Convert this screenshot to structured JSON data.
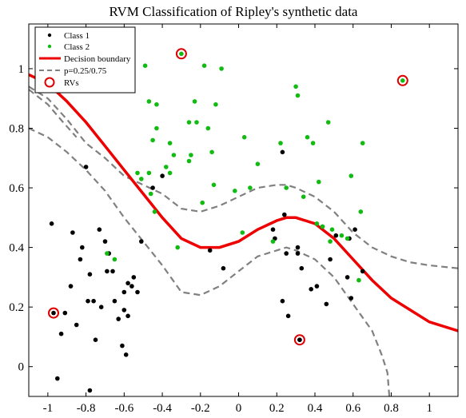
{
  "chart_data": {
    "type": "scatter",
    "title": "RVM Classification of Ripley's synthetic data",
    "xlabel": "",
    "ylabel": "",
    "xlim": [
      -1.1,
      1.15
    ],
    "ylim": [
      -0.1,
      1.15
    ],
    "xticks": [
      -1,
      -0.8,
      -0.6,
      -0.4,
      -0.2,
      0,
      0.2,
      0.4,
      0.6,
      0.8,
      1
    ],
    "xtick_labels": [
      "-1",
      "-0.8",
      "-0.6",
      "-0.4",
      "-0.2",
      "0",
      "0.2",
      "0.4",
      "0.6",
      "0.8",
      "1"
    ],
    "yticks": [
      0,
      0.2,
      0.4,
      0.6,
      0.8,
      1
    ],
    "ytick_labels": [
      "0",
      "0.2",
      "0.4",
      "0.6",
      "0.8",
      "1"
    ],
    "grid": false,
    "legend_position": "top-left",
    "colors": {
      "class1": "#000000",
      "class2": "#11bb11",
      "boundary": "#ee0000",
      "contour": "#808080",
      "rv_ring": "#dd0000"
    },
    "legend": [
      {
        "label": "Class 1",
        "marker": "black-dot"
      },
      {
        "label": "Class 2",
        "marker": "green-dot"
      },
      {
        "label": "Decision boundary",
        "marker": "red-line"
      },
      {
        "label": "p=0.25/0.75",
        "marker": "gray-dashed-line"
      },
      {
        "label": "RVs",
        "marker": "red-circle"
      }
    ],
    "series": [
      {
        "name": "Class 1",
        "points": [
          [
            -0.98,
            0.48
          ],
          [
            -0.95,
            -0.04
          ],
          [
            -0.93,
            0.11
          ],
          [
            -0.91,
            0.18
          ],
          [
            -0.88,
            0.27
          ],
          [
            -0.87,
            0.45
          ],
          [
            -0.85,
            0.14
          ],
          [
            -0.83,
            0.36
          ],
          [
            -0.82,
            0.4
          ],
          [
            -0.8,
            0.67
          ],
          [
            -0.79,
            0.22
          ],
          [
            -0.78,
            0.31
          ],
          [
            -0.76,
            0.22
          ],
          [
            -0.75,
            0.09
          ],
          [
            -0.73,
            0.46
          ],
          [
            -0.72,
            0.2
          ],
          [
            -0.7,
            0.42
          ],
          [
            -0.69,
            0.32
          ],
          [
            -0.68,
            0.38
          ],
          [
            -0.66,
            0.32
          ],
          [
            -0.65,
            0.22
          ],
          [
            -0.63,
            0.16
          ],
          [
            -0.61,
            0.07
          ],
          [
            -0.6,
            0.25
          ],
          [
            -0.59,
            0.04
          ],
          [
            -0.58,
            0.28
          ],
          [
            -0.56,
            0.27
          ],
          [
            -0.55,
            0.3
          ],
          [
            -0.53,
            0.25
          ],
          [
            -0.51,
            0.42
          ],
          [
            -0.45,
            0.6
          ],
          [
            -0.4,
            0.64
          ],
          [
            -0.78,
            -0.08
          ],
          [
            -0.6,
            0.19
          ],
          [
            -0.58,
            0.17
          ],
          [
            -0.15,
            0.39
          ],
          [
            -0.08,
            0.33
          ],
          [
            0.18,
            0.46
          ],
          [
            0.19,
            0.43
          ],
          [
            0.23,
            0.72
          ],
          [
            0.23,
            0.22
          ],
          [
            0.24,
            0.51
          ],
          [
            0.25,
            0.38
          ],
          [
            0.26,
            0.17
          ],
          [
            0.31,
            0.4
          ],
          [
            0.31,
            0.38
          ],
          [
            0.32,
            0.09
          ],
          [
            0.33,
            0.33
          ],
          [
            0.38,
            0.26
          ],
          [
            0.41,
            0.27
          ],
          [
            0.44,
            0.47
          ],
          [
            0.46,
            0.21
          ],
          [
            0.48,
            0.36
          ],
          [
            0.51,
            0.44
          ],
          [
            0.57,
            0.3
          ],
          [
            0.58,
            0.43
          ],
          [
            0.59,
            0.23
          ],
          [
            0.65,
            0.32
          ],
          [
            0.61,
            0.46
          ],
          [
            -0.97,
            0.18
          ],
          [
            0.32,
            0.09
          ]
        ]
      },
      {
        "name": "Class 2",
        "points": [
          [
            -0.69,
            0.38
          ],
          [
            -0.65,
            0.36
          ],
          [
            -0.53,
            0.65
          ],
          [
            -0.51,
            0.63
          ],
          [
            -0.49,
            1.01
          ],
          [
            -0.47,
            0.89
          ],
          [
            -0.47,
            0.65
          ],
          [
            -0.46,
            0.58
          ],
          [
            -0.45,
            0.76
          ],
          [
            -0.44,
            0.52
          ],
          [
            -0.43,
            0.88
          ],
          [
            -0.43,
            0.8
          ],
          [
            -0.38,
            0.67
          ],
          [
            -0.36,
            0.65
          ],
          [
            -0.36,
            0.75
          ],
          [
            -0.34,
            0.71
          ],
          [
            -0.32,
            0.4
          ],
          [
            -0.3,
            1.05
          ],
          [
            -0.26,
            0.82
          ],
          [
            -0.26,
            0.69
          ],
          [
            -0.25,
            0.71
          ],
          [
            -0.23,
            0.89
          ],
          [
            -0.22,
            0.82
          ],
          [
            -0.19,
            0.55
          ],
          [
            -0.18,
            1.01
          ],
          [
            -0.16,
            0.8
          ],
          [
            -0.14,
            0.72
          ],
          [
            -0.13,
            0.61
          ],
          [
            -0.12,
            0.88
          ],
          [
            -0.09,
            1.0
          ],
          [
            -0.02,
            0.59
          ],
          [
            0.02,
            0.45
          ],
          [
            0.06,
            0.6
          ],
          [
            0.03,
            0.77
          ],
          [
            0.1,
            0.68
          ],
          [
            0.18,
            0.42
          ],
          [
            0.22,
            0.75
          ],
          [
            0.25,
            0.6
          ],
          [
            0.3,
            0.94
          ],
          [
            0.31,
            0.91
          ],
          [
            0.34,
            0.57
          ],
          [
            0.36,
            0.77
          ],
          [
            0.39,
            0.75
          ],
          [
            0.41,
            0.48
          ],
          [
            0.42,
            0.62
          ],
          [
            0.44,
            0.47
          ],
          [
            0.47,
            0.82
          ],
          [
            0.49,
            0.46
          ],
          [
            0.54,
            0.44
          ],
          [
            0.57,
            0.43
          ],
          [
            0.59,
            0.64
          ],
          [
            0.63,
            0.29
          ],
          [
            0.64,
            0.52
          ],
          [
            0.65,
            0.75
          ],
          [
            0.48,
            0.42
          ],
          [
            0.86,
            0.96
          ]
        ]
      }
    ],
    "relevance_vectors": [
      [
        -0.3,
        1.05
      ],
      [
        0.86,
        0.96
      ],
      [
        -0.97,
        0.18
      ],
      [
        0.32,
        0.09
      ]
    ],
    "decision_boundary": [
      [
        -1.1,
        0.98
      ],
      [
        -1.0,
        0.95
      ],
      [
        -0.9,
        0.89
      ],
      [
        -0.8,
        0.82
      ],
      [
        -0.7,
        0.74
      ],
      [
        -0.6,
        0.66
      ],
      [
        -0.5,
        0.58
      ],
      [
        -0.4,
        0.5
      ],
      [
        -0.3,
        0.43
      ],
      [
        -0.2,
        0.4
      ],
      [
        -0.1,
        0.4
      ],
      [
        0.0,
        0.42
      ],
      [
        0.1,
        0.46
      ],
      [
        0.2,
        0.49
      ],
      [
        0.25,
        0.5
      ],
      [
        0.3,
        0.5
      ],
      [
        0.4,
        0.48
      ],
      [
        0.5,
        0.43
      ],
      [
        0.6,
        0.36
      ],
      [
        0.7,
        0.29
      ],
      [
        0.8,
        0.23
      ],
      [
        0.9,
        0.19
      ],
      [
        1.0,
        0.15
      ],
      [
        1.15,
        0.12
      ]
    ],
    "contour_upper": [
      [
        -1.1,
        0.94
      ],
      [
        -1.0,
        0.9
      ],
      [
        -0.9,
        0.83
      ],
      [
        -0.8,
        0.75
      ],
      [
        -0.7,
        0.7
      ],
      [
        -0.6,
        0.64
      ],
      [
        -0.5,
        0.61
      ],
      [
        -0.4,
        0.58
      ],
      [
        -0.3,
        0.53
      ],
      [
        -0.2,
        0.52
      ],
      [
        -0.1,
        0.54
      ],
      [
        0.0,
        0.57
      ],
      [
        0.1,
        0.6
      ],
      [
        0.2,
        0.61
      ],
      [
        0.25,
        0.61
      ],
      [
        0.3,
        0.6
      ],
      [
        0.4,
        0.57
      ],
      [
        0.5,
        0.52
      ],
      [
        0.6,
        0.45
      ],
      [
        0.7,
        0.4
      ],
      [
        0.8,
        0.37
      ],
      [
        0.9,
        0.35
      ],
      [
        1.0,
        0.34
      ],
      [
        1.15,
        0.33
      ]
    ],
    "contour_lower": [
      [
        -1.1,
        0.8
      ],
      [
        -1.0,
        0.77
      ],
      [
        -0.9,
        0.72
      ],
      [
        -0.8,
        0.66
      ],
      [
        -0.7,
        0.59
      ],
      [
        -0.6,
        0.5
      ],
      [
        -0.5,
        0.42
      ],
      [
        -0.4,
        0.34
      ],
      [
        -0.3,
        0.25
      ],
      [
        -0.2,
        0.24
      ],
      [
        -0.1,
        0.27
      ],
      [
        0.0,
        0.32
      ],
      [
        0.1,
        0.37
      ],
      [
        0.2,
        0.39
      ],
      [
        0.25,
        0.4
      ],
      [
        0.3,
        0.39
      ],
      [
        0.4,
        0.36
      ],
      [
        0.5,
        0.3
      ],
      [
        0.6,
        0.21
      ],
      [
        0.7,
        0.12
      ],
      [
        0.75,
        0.04
      ],
      [
        0.78,
        -0.02
      ],
      [
        0.79,
        -0.1
      ]
    ],
    "contour_left": [
      [
        -1.1,
        0.93
      ],
      [
        -1.0,
        0.88
      ],
      [
        -0.92,
        0.82
      ],
      [
        -0.85,
        0.77
      ]
    ]
  }
}
